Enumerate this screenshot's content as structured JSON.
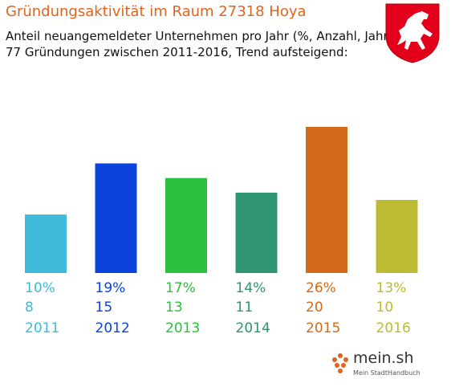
{
  "header": {
    "title": "Gründungsaktivität im Raum 27318 Hoya",
    "subtitle_line1": "Anteil neuangemeldeter Unternehmen pro Jahr (%, Anzahl, Jahr)",
    "subtitle_line2": "77 Gründungen zwischen 2011-2016, Trend aufsteigend:"
  },
  "emblem": {
    "icon": "lower-saxony-horse-emblem",
    "field_color": "#e3001b",
    "figure_color": "#ffffff"
  },
  "logo": {
    "text": "mein.sh",
    "tagline": "Mein StadtHandbuch",
    "icon": "map-pin-dots-icon"
  },
  "colors": {
    "title": "#e2641c"
  },
  "chart_data": {
    "type": "bar",
    "title": "Gründungsaktivität im Raum 27318 Hoya",
    "subtitle": "Anteil neuangemeldeter Unternehmen pro Jahr (%, Anzahl, Jahr)",
    "categories": [
      "2011",
      "2012",
      "2013",
      "2014",
      "2015",
      "2016"
    ],
    "values": [
      8,
      15,
      13,
      11,
      20,
      10
    ],
    "percentages": [
      "10%",
      "19%",
      "17%",
      "14%",
      "26%",
      "13%"
    ],
    "colors": [
      "#3fbad8",
      "#0a44dc",
      "#2cc03f",
      "#2f9470",
      "#d26a19",
      "#bdbb34"
    ],
    "ylim": [
      0,
      20
    ],
    "grid": false,
    "legend": "none",
    "total": 77
  }
}
